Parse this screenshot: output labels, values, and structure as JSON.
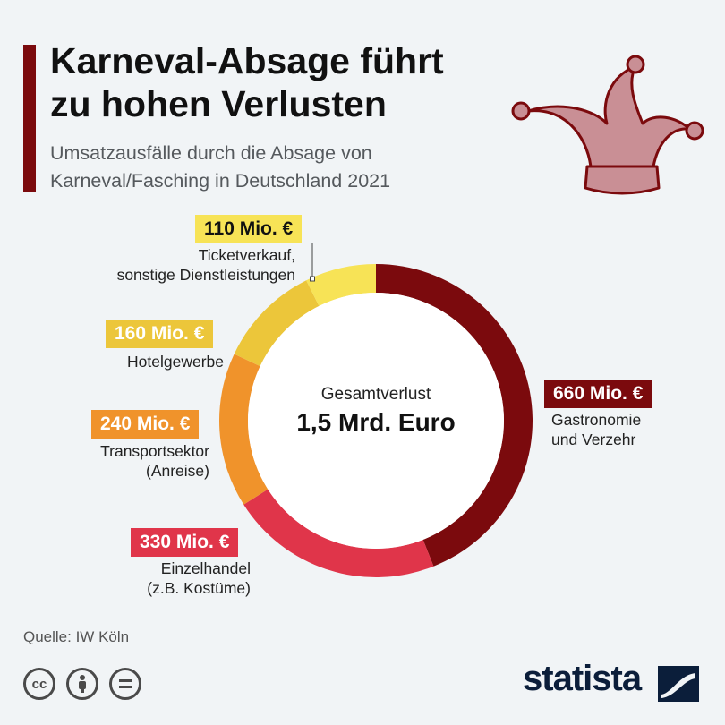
{
  "header": {
    "title_line1": "Karneval-Absage führt",
    "title_line2": "zu hohen Verlusten",
    "subtitle_line1": "Umsatzausfälle durch die Absage von",
    "subtitle_line2": "Karneval/Fasching in Deutschland 2021"
  },
  "center": {
    "label": "Gesamtverlust",
    "value": "1,5 Mrd. Euro"
  },
  "colors": {
    "gastronomie": "#7b0a0d",
    "einzelhandel": "#e0354a",
    "transport": "#f0932b",
    "hotel": "#ecc63a",
    "ticket": "#f7e356",
    "accent": "#7b0a0d",
    "hat": "#c98f95"
  },
  "chart_data": {
    "type": "pie",
    "title": "Karneval-Absage führt zu hohen Verlusten",
    "subtitle": "Umsatzausfälle durch die Absage von Karneval/Fasching in Deutschland 2021",
    "unit": "Mio. €",
    "total_label": "1,5 Mrd. Euro",
    "slices": [
      {
        "key": "gastronomie",
        "value": 660,
        "label": "660 Mio. €",
        "desc1": "Gastronomie",
        "desc2": "und Verzehr"
      },
      {
        "key": "einzelhandel",
        "value": 330,
        "label": "330 Mio. €",
        "desc1": "Einzelhandel",
        "desc2": "(z.B. Kostüme)"
      },
      {
        "key": "transport",
        "value": 240,
        "label": "240 Mio. €",
        "desc1": "Transportsektor",
        "desc2": "(Anreise)"
      },
      {
        "key": "hotel",
        "value": 160,
        "label": "160 Mio. €",
        "desc1": "Hotelgewerbe",
        "desc2": ""
      },
      {
        "key": "ticket",
        "value": 110,
        "label": "110 Mio. €",
        "desc1": "Ticketverkauf,",
        "desc2": "sonstige Dienstleistungen"
      }
    ]
  },
  "footer": {
    "source": "Quelle: IW Köln",
    "brand": "statista",
    "cc_icon": "cc-icon",
    "by_icon": "attribution-icon",
    "nd_icon": "no-derivatives-icon"
  }
}
